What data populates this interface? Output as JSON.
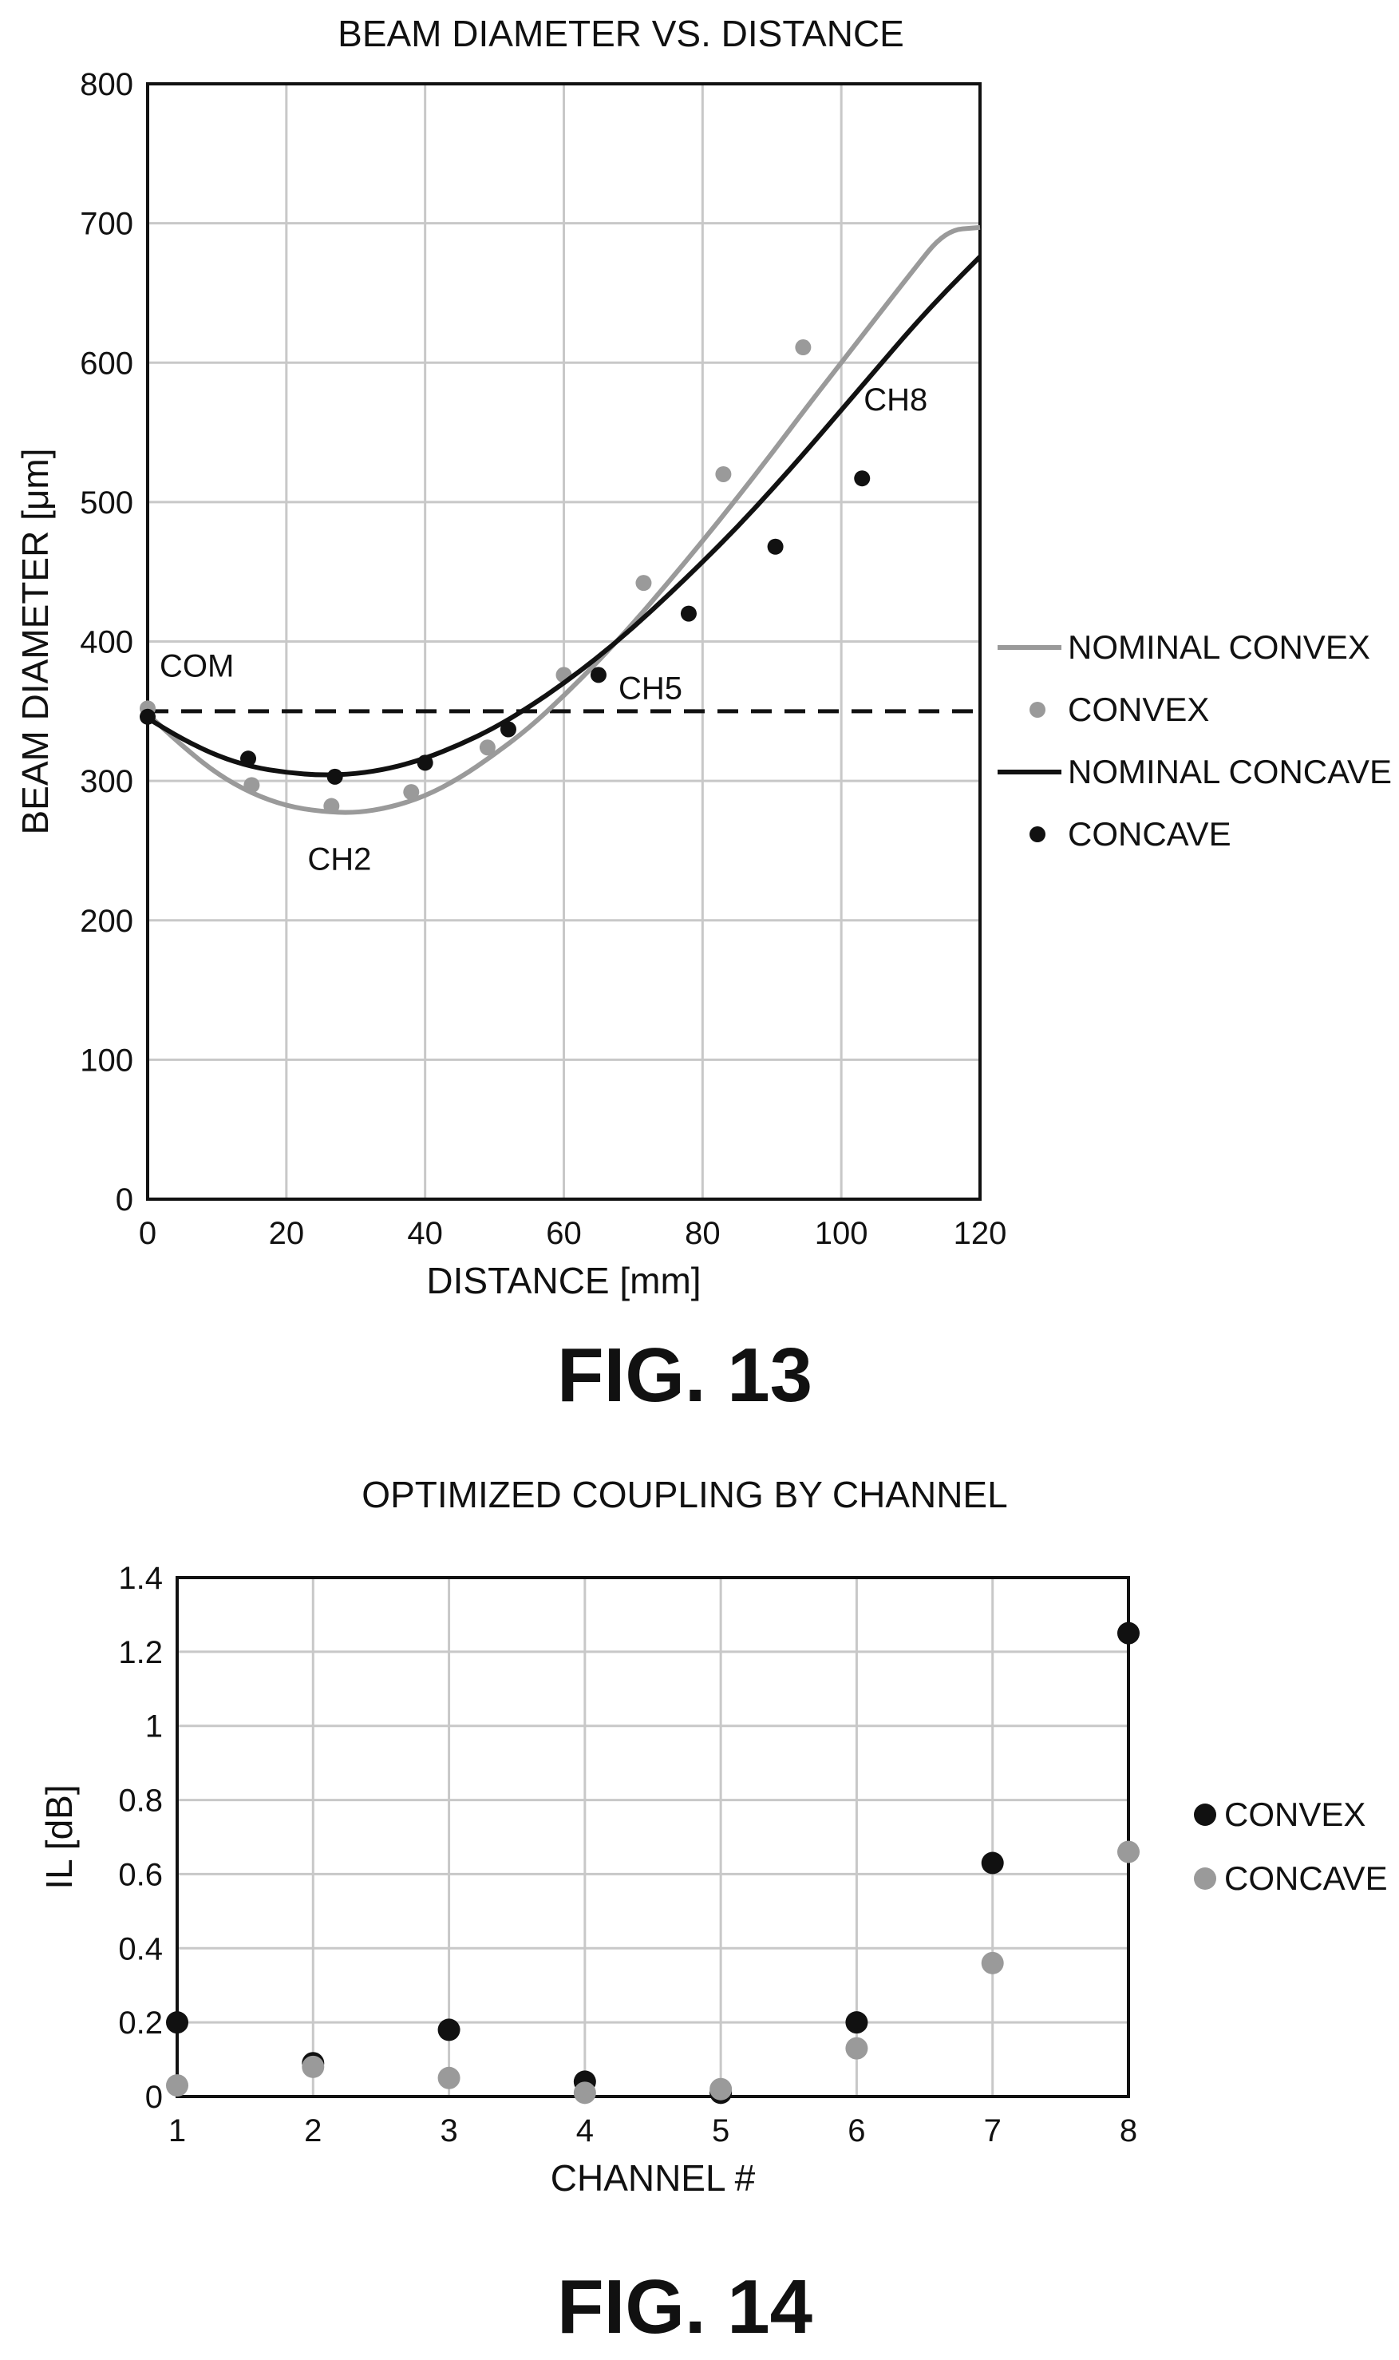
{
  "figures": [
    {
      "caption": "FIG. 13"
    },
    {
      "caption": "FIG. 14"
    }
  ],
  "colors": {
    "light": "#9a9a9a",
    "dark": "#111111",
    "grid": "#c8c8c8"
  },
  "chart_data": [
    {
      "type": "scatter",
      "title": "BEAM DIAMETER VS. DISTANCE",
      "xlabel": "DISTANCE [mm]",
      "ylabel": "BEAM DIAMETER [μm]",
      "xlim": [
        0,
        120
      ],
      "ylim": [
        0,
        800
      ],
      "xticks": [
        0,
        20,
        40,
        60,
        80,
        100,
        120
      ],
      "yticks": [
        0,
        100,
        200,
        300,
        400,
        500,
        600,
        700,
        800
      ],
      "grid": true,
      "legend_position": "right",
      "reference_line": {
        "y": 350,
        "style": "dashed"
      },
      "series": [
        {
          "name": "NOMINAL CONVEX",
          "kind": "line",
          "color": "#9a9a9a",
          "x": [
            0,
            5,
            10,
            15,
            20,
            25,
            30,
            35,
            40,
            45,
            50,
            55,
            60,
            65,
            70,
            75,
            80,
            85,
            90,
            95,
            100,
            105,
            110,
            115,
            120
          ],
          "y": [
            348,
            325,
            305,
            291,
            282,
            278,
            277,
            281,
            289,
            302,
            319,
            338,
            361,
            386,
            413,
            442,
            472,
            503,
            535,
            568,
            600,
            632,
            664,
            695,
            697
          ]
        },
        {
          "name": "CONVEX",
          "kind": "points",
          "color": "#9a9a9a",
          "x": [
            0,
            15,
            26.5,
            38,
            49,
            60,
            71.5,
            83,
            94.5
          ],
          "y": [
            352,
            297,
            282,
            292,
            324,
            376,
            442,
            520,
            611
          ]
        },
        {
          "name": "NOMINAL CONCAVE",
          "kind": "line",
          "color": "#111111",
          "x": [
            0,
            5,
            10,
            15,
            20,
            25,
            30,
            35,
            40,
            45,
            50,
            55,
            60,
            65,
            70,
            75,
            80,
            85,
            90,
            95,
            100,
            105,
            110,
            115,
            120
          ],
          "y": [
            345,
            330,
            318,
            310,
            306,
            304,
            305,
            309,
            316,
            326,
            338,
            353,
            370,
            389,
            410,
            433,
            457,
            482,
            509,
            537,
            566,
            595,
            624,
            651,
            676
          ]
        },
        {
          "name": "CONCAVE",
          "kind": "points",
          "color": "#111111",
          "x": [
            0,
            14.5,
            27,
            40,
            52,
            65,
            78,
            90.5,
            103
          ],
          "y": [
            346,
            316,
            303,
            313,
            337,
            376,
            420,
            468,
            517
          ]
        }
      ],
      "annotations": [
        {
          "text": "COM",
          "x": 0,
          "y": 352
        },
        {
          "text": "CH2",
          "x": 26.5,
          "y": 282
        },
        {
          "text": "CH5",
          "x": 65,
          "y": 376
        },
        {
          "text": "CH8",
          "x": 103,
          "y": 517
        }
      ]
    },
    {
      "type": "scatter",
      "title": "OPTIMIZED COUPLING BY CHANNEL",
      "xlabel": "CHANNEL #",
      "ylabel": "IL [dB]",
      "xlim": [
        1,
        8
      ],
      "ylim": [
        0,
        1.4
      ],
      "xticks": [
        1,
        2,
        3,
        4,
        5,
        6,
        7,
        8
      ],
      "yticks": [
        0,
        0.2,
        0.4,
        0.6,
        0.8,
        1,
        1.2,
        1.4
      ],
      "ytick_labels": [
        "0",
        "0.2",
        "0.4",
        "0.6",
        "0.8",
        "1",
        "1.2",
        "1.4"
      ],
      "grid": true,
      "legend_position": "right",
      "series": [
        {
          "name": "CONVEX",
          "kind": "points",
          "color": "#111111",
          "x": [
            1,
            2,
            3,
            4,
            5,
            6,
            7,
            8
          ],
          "y": [
            0.2,
            0.09,
            0.18,
            0.04,
            0.01,
            0.2,
            0.63,
            1.25
          ]
        },
        {
          "name": "CONCAVE",
          "kind": "points",
          "color": "#9a9a9a",
          "x": [
            1,
            2,
            3,
            4,
            5,
            6,
            7,
            8
          ],
          "y": [
            0.03,
            0.08,
            0.05,
            0.01,
            0.02,
            0.13,
            0.36,
            0.66
          ]
        }
      ]
    }
  ]
}
